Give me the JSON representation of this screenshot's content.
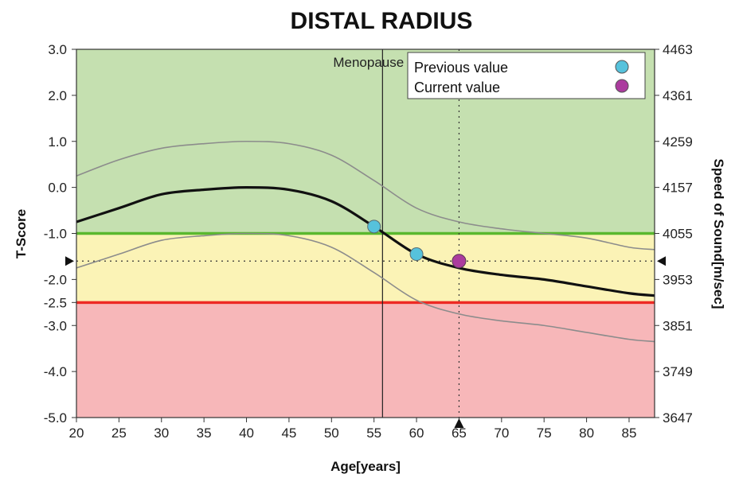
{
  "chart_data": {
    "type": "line",
    "title": "DISTAL RADIUS",
    "xlabel": "Age[years]",
    "ylabel_left": "T-Score",
    "ylabel_right": "Speed of Sound[m/sec]",
    "xlim": [
      20,
      88
    ],
    "ylim": [
      -5.0,
      3.0
    ],
    "x_ticks": [
      20,
      25,
      30,
      35,
      40,
      45,
      50,
      55,
      60,
      65,
      70,
      75,
      80,
      85
    ],
    "x_tick_labels": [
      "20",
      "25",
      "30",
      "35",
      "40",
      "45",
      "50",
      "55",
      "60",
      "65",
      "70",
      "75",
      "80",
      "85"
    ],
    "y_ticks": [
      3.0,
      2.0,
      1.0,
      0.0,
      -1.0,
      -2.0,
      -2.5,
      -3.0,
      -4.0,
      -5.0
    ],
    "y_tick_labels": [
      "3.0",
      "2.0",
      "1.0",
      "0.0",
      "-1.0",
      "-2.0",
      "-2.5",
      "-3.0",
      "-4.0",
      "-5.0"
    ],
    "right_ticks": [
      {
        "t": 3.0,
        "label": "4463"
      },
      {
        "t": 2.0,
        "label": "4361"
      },
      {
        "t": 1.0,
        "label": "4259"
      },
      {
        "t": 0.0,
        "label": "4157"
      },
      {
        "t": -1.0,
        "label": "4055"
      },
      {
        "t": -2.0,
        "label": "3953"
      },
      {
        "t": -3.0,
        "label": "3851"
      },
      {
        "t": -4.0,
        "label": "3749"
      },
      {
        "t": -5.0,
        "label": "3647"
      }
    ],
    "zones": [
      {
        "name": "normal",
        "from": -1.0,
        "to": 3.0,
        "color": "#c5e0b0"
      },
      {
        "name": "osteopenia",
        "from": -2.5,
        "to": -1.0,
        "color": "#fbf3b6"
      },
      {
        "name": "osteoporosis",
        "from": -5.0,
        "to": -2.5,
        "color": "#f7b7b9"
      }
    ],
    "threshold_lines": [
      {
        "y": -1.0,
        "color": "#5ab82e"
      },
      {
        "y": -2.5,
        "color": "#ee2a24"
      }
    ],
    "reference_line": {
      "x": [
        20,
        25,
        30,
        35,
        40,
        45,
        50,
        55,
        60,
        65,
        70,
        75,
        80,
        85,
        88
      ],
      "y": [
        -0.75,
        -0.45,
        -0.15,
        -0.05,
        0.0,
        -0.05,
        -0.3,
        -0.85,
        -1.45,
        -1.75,
        -1.9,
        -2.0,
        -2.15,
        -2.3,
        -2.35
      ]
    },
    "upper_band": {
      "x": [
        20,
        25,
        30,
        35,
        40,
        45,
        50,
        55,
        60,
        65,
        70,
        75,
        80,
        85,
        88
      ],
      "y": [
        0.25,
        0.6,
        0.85,
        0.95,
        1.0,
        0.95,
        0.7,
        0.15,
        -0.45,
        -0.75,
        -0.9,
        -1.0,
        -1.1,
        -1.3,
        -1.35
      ]
    },
    "lower_band": {
      "x": [
        20,
        25,
        30,
        35,
        40,
        45,
        50,
        55,
        60,
        65,
        70,
        75,
        80,
        85,
        88
      ],
      "y": [
        -1.75,
        -1.45,
        -1.15,
        -1.05,
        -1.0,
        -1.05,
        -1.3,
        -1.85,
        -2.45,
        -2.75,
        -2.9,
        -3.0,
        -3.15,
        -3.3,
        -3.35
      ]
    },
    "menopause": {
      "x": 56,
      "label": "Menopause"
    },
    "current_age_x": 65,
    "current_t_level": -1.6,
    "previous_values": [
      {
        "x": 55,
        "y": -0.85
      },
      {
        "x": 60,
        "y": -1.45
      }
    ],
    "current_value": {
      "x": 65,
      "y": -1.6
    },
    "legend": {
      "placement": "top-right",
      "entries": [
        {
          "label": "Previous value",
          "color": "#56c2dc"
        },
        {
          "label": "Current value",
          "color": "#ab3c9e"
        }
      ]
    }
  }
}
